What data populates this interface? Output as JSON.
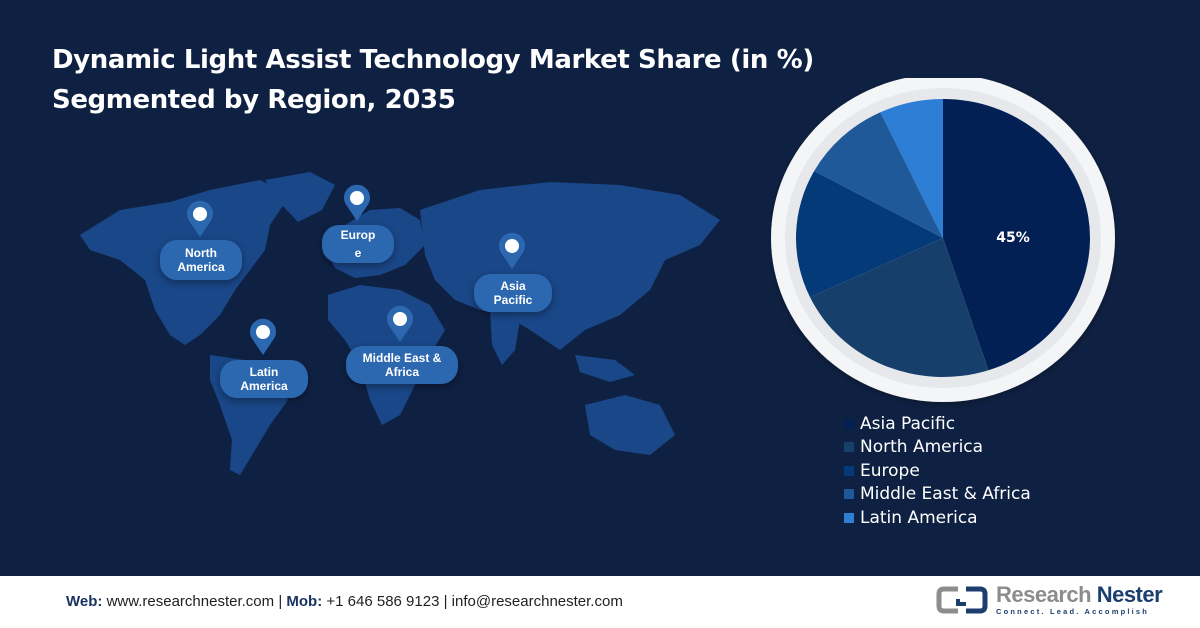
{
  "header": {
    "title_line1": "Dynamic Light Assist Technology Market Share (in %)",
    "title_line2": "Segmented by Region, 2035"
  },
  "map": {
    "icon": "location-pin-icon",
    "markers": [
      {
        "label": "North America"
      },
      {
        "label": "Europ e"
      },
      {
        "label": "Asia Pacific"
      },
      {
        "label": "Latin America"
      },
      {
        "label": "Middle East & Africa"
      }
    ]
  },
  "chart_data": {
    "type": "pie",
    "title": "Dynamic Light Assist Technology Market Share (in %) Segmented by Region, 2035",
    "categories": [
      "Asia Pacific",
      "North America",
      "Europe",
      "Middle East & Africa",
      "Latin America"
    ],
    "values": [
      45,
      23,
      15,
      10,
      7
    ],
    "colors": [
      "#032054",
      "#173f6c",
      "#043a78",
      "#20599a",
      "#2d7ed4"
    ],
    "data_labels": [
      "45%",
      "",
      "",
      "",
      ""
    ],
    "start_angle": 0,
    "direction": "clockwise",
    "legend_position": "bottom-right"
  },
  "legend": {
    "items": [
      {
        "label": "Asia Pacific",
        "color": "#032054"
      },
      {
        "label": "North America",
        "color": "#173f6c"
      },
      {
        "label": "Europe",
        "color": "#043a78"
      },
      {
        "label": "Middle East & Africa",
        "color": "#20599a"
      },
      {
        "label": "Latin America",
        "color": "#2d7ed4"
      }
    ]
  },
  "footer": {
    "web_label": "Web:",
    "web_value": "www.researchnester.com",
    "sep": "|",
    "mob_label": "Mob:",
    "mob_value": "+1 646 586 9123",
    "email": "info@researchnester.com",
    "logo_word1": "Research",
    "logo_word2": "Nester",
    "logo_tagline": "Connect. Lead. Accomplish"
  },
  "colors": {
    "background": "#0f2143",
    "pill": "#2c68b0",
    "map_land": "#1b4a8c"
  }
}
